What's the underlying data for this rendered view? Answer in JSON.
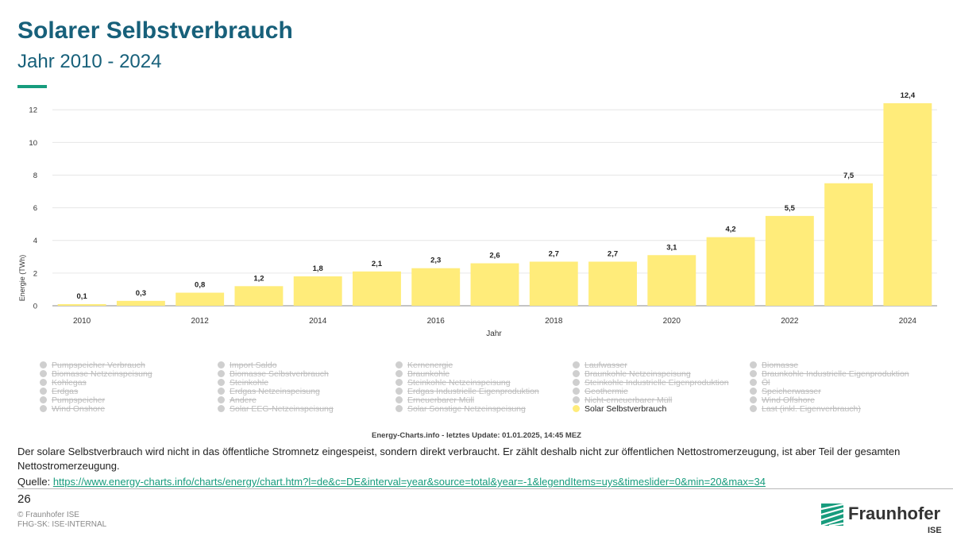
{
  "header": {
    "title": "Solarer Selbstverbrauch",
    "subtitle": "Jahr 2010 - 2024"
  },
  "chart_data": {
    "type": "bar",
    "title": "",
    "xlabel": "Jahr",
    "ylabel": "Energie (TWh)",
    "ylim": [
      0,
      12.4
    ],
    "yticks": [
      0,
      2,
      4,
      6,
      8,
      10,
      12
    ],
    "xtick_labels": [
      "2010",
      "2012",
      "2014",
      "2016",
      "2018",
      "2020",
      "2022",
      "2024"
    ],
    "categories": [
      "2010",
      "2011",
      "2012",
      "2013",
      "2014",
      "2015",
      "2016",
      "2017",
      "2018",
      "2019",
      "2020",
      "2021",
      "2022",
      "2023",
      "2024"
    ],
    "values": [
      0.1,
      0.3,
      0.8,
      1.2,
      1.8,
      2.1,
      2.3,
      2.6,
      2.7,
      2.7,
      3.1,
      4.2,
      5.5,
      7.5,
      12.4
    ],
    "value_labels": [
      "0,1",
      "0,3",
      "0,8",
      "1,2",
      "1,8",
      "2,1",
      "2,3",
      "2,6",
      "2,7",
      "2,7",
      "3,1",
      "4,2",
      "5,5",
      "7,5",
      "12,4"
    ],
    "grid": true,
    "bar_color": "#ffec7a",
    "legend_position": "bottom"
  },
  "legend": {
    "columns": [
      [
        "Pumpspeicher Verbrauch",
        "Biomasse Netzeinspeisung",
        "Kohlegas",
        "Erdgas",
        "Pumpspeicher",
        "Wind Onshore"
      ],
      [
        "Import Saldo",
        "Biomasse Selbstverbrauch",
        "Steinkohle",
        "Erdgas Netzeinspeisung",
        "Andere",
        "Solar EEG-Netzeinspeisung"
      ],
      [
        "Kernenergie",
        "Braunkohle",
        "Steinkohle Netzeinspeisung",
        "Erdgas Industrielle Eigenproduktion",
        "Erneuerbarer Müll",
        "Solar Sonstige Netzeinspeisung"
      ],
      [
        "Laufwasser",
        "Braunkohle Netzeinspeisung",
        "Steinkohle Industrielle Eigenproduktion",
        "Geothermie",
        "Nicht-erneuerbarer Müll",
        "Solar Selbstverbrauch"
      ],
      [
        "Biomasse",
        "Braunkohle Industrielle Eigenproduktion",
        "Öl",
        "Speicherwasser",
        "Wind Offshore",
        "Last (inkl. Eigenverbrauch)"
      ]
    ],
    "active": "Solar Selbstverbrauch"
  },
  "footer": {
    "credit": "Energy-Charts.info - letztes Update: 01.01.2025, 14:45 MEZ",
    "description": "Der solare Selbstverbrauch wird nicht in das öffentliche Stromnetz eingespeist, sondern direkt verbraucht. Er zählt deshalb nicht zur öffentlichen Nettostromerzeugung, ist aber Teil der gesamten Nettostromerzeugung.",
    "source_label": "Quelle:",
    "source_url": "https://www.energy-charts.info/charts/energy/chart.htm?l=de&c=DE&interval=year&source=total&year=-1&legendItems=uys&timeslider=0&min=20&max=34",
    "page_number": "26",
    "copyright": "© Fraunhofer ISE",
    "classification": "FHG-SK: ISE-INTERNAL",
    "logo_text": "Fraunhofer",
    "logo_sub": "ISE",
    "logo_color": "#179c7d"
  }
}
